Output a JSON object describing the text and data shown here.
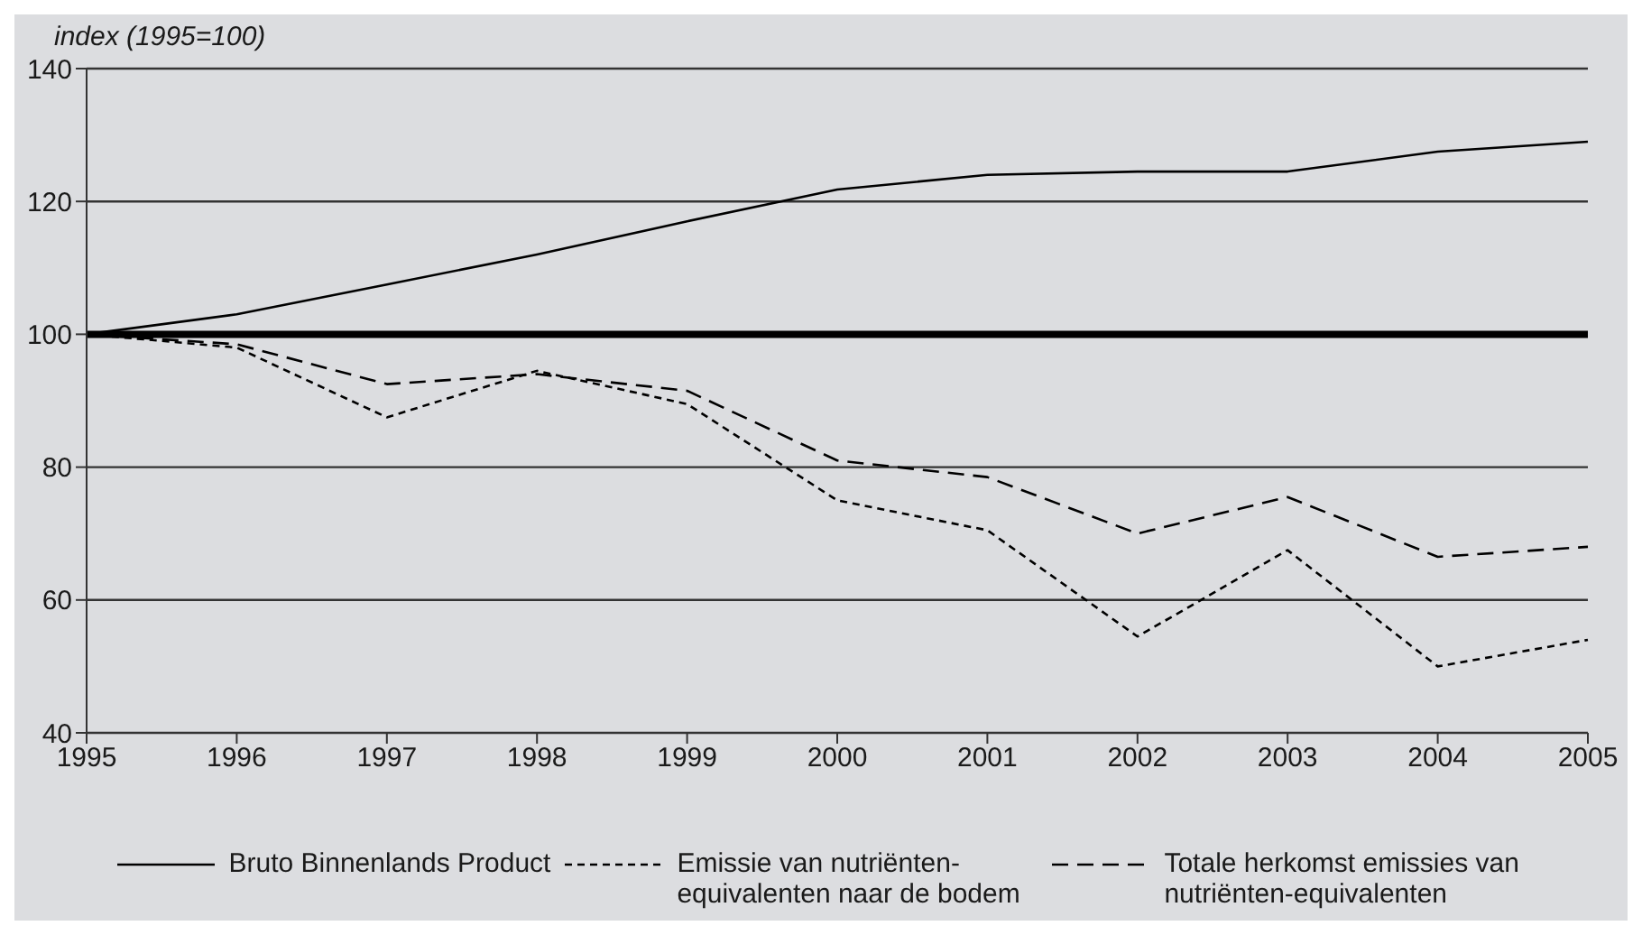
{
  "chart_data": {
    "type": "line",
    "ylabel": "index (1995=100)",
    "categories": [
      "1995",
      "1996",
      "1997",
      "1998",
      "1999",
      "2000",
      "2001",
      "2002",
      "2003",
      "2004",
      "2005"
    ],
    "series": [
      {
        "name": "Bruto Binnenlands Product",
        "color": "#000000",
        "line_style": "solid",
        "values": [
          100,
          103,
          107.5,
          112,
          117,
          121.8,
          124,
          124.5,
          124.5,
          127.5,
          129
        ]
      },
      {
        "name": "Emissie van nutriënten-equivalenten naar de bodem",
        "color": "#000000",
        "line_style": "dotted",
        "values": [
          100,
          98,
          87.5,
          94.5,
          89.5,
          75,
          70.5,
          54.5,
          67.5,
          50,
          54
        ]
      },
      {
        "name": "Totale herkomst emissies van nutriënten-equivalenten",
        "color": "#000000",
        "line_style": "dashed",
        "values": [
          100,
          98.5,
          92.5,
          94,
          91.5,
          81,
          78.5,
          70,
          75.5,
          66.5,
          68
        ]
      }
    ],
    "ylim": [
      40,
      140
    ],
    "yticks": [
      40,
      60,
      80,
      100,
      120,
      140
    ],
    "grid": "y",
    "legend": "bottom",
    "marker": "none",
    "ref_lines": [
      {
        "axis": "y",
        "value": 100,
        "color": "#000000"
      }
    ]
  }
}
